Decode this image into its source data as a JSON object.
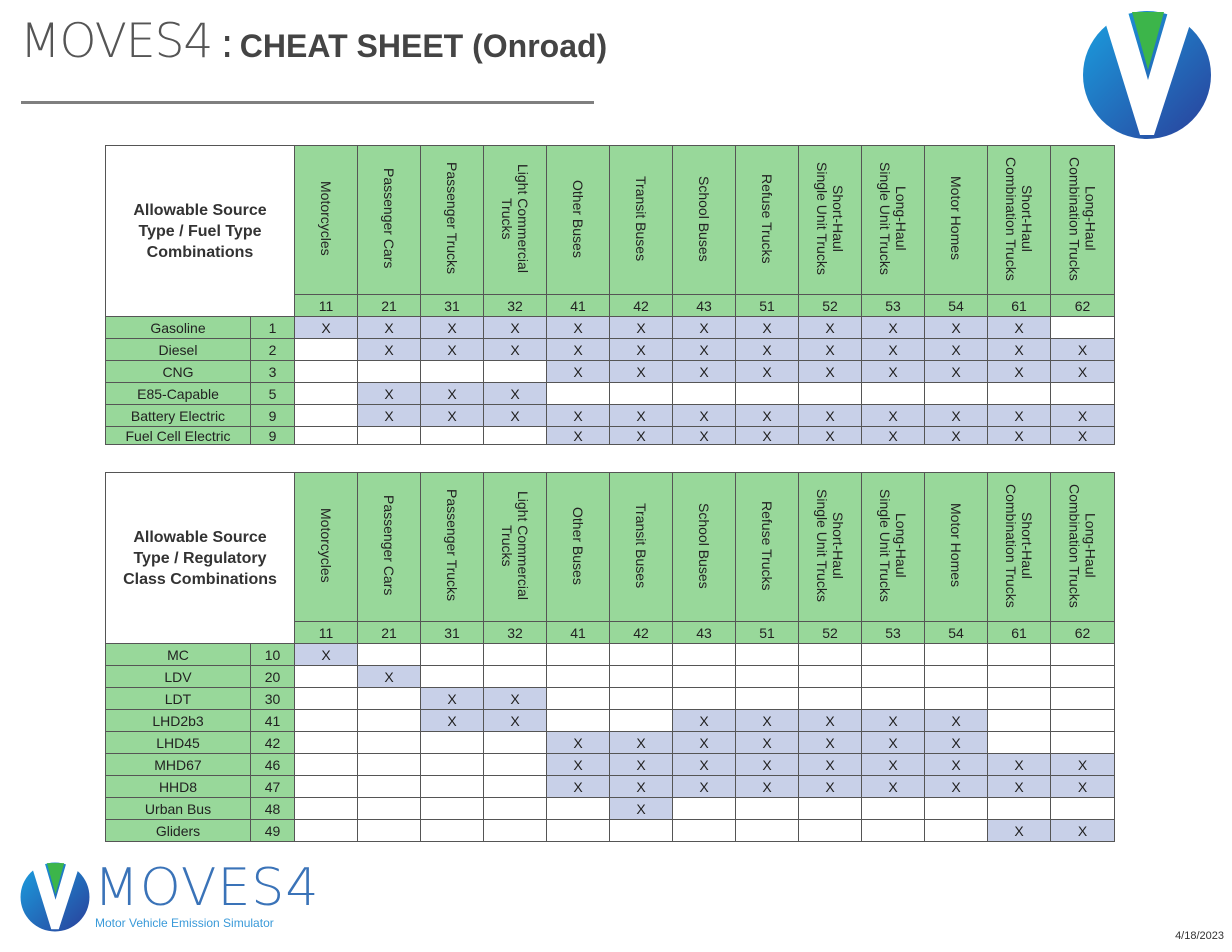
{
  "title": {
    "light": "MOVES4",
    "sep": ":",
    "bold": "CHEAT SHEET (Onroad)"
  },
  "date": "4/18/2023",
  "colors": {
    "header_green": "#98d89a",
    "cell_blue": "#c8d0e8",
    "logo_green": "#3cb54a",
    "logo_blue": "#1e88d0"
  },
  "source_types": [
    {
      "name": "Motorcycles",
      "id": "11"
    },
    {
      "name": "Passenger Cars",
      "id": "21"
    },
    {
      "name": "Passenger Trucks",
      "id": "31"
    },
    {
      "name": "Light Commercial\nTrucks",
      "id": "32"
    },
    {
      "name": "Other Buses",
      "id": "41"
    },
    {
      "name": "Transit Buses",
      "id": "42"
    },
    {
      "name": "School Buses",
      "id": "43"
    },
    {
      "name": "Refuse Trucks",
      "id": "51"
    },
    {
      "name": "Short-Haul\nSingle Unit Trucks",
      "id": "52"
    },
    {
      "name": "Long-Haul\nSingle Unit Trucks",
      "id": "53"
    },
    {
      "name": "Motor Homes",
      "id": "54"
    },
    {
      "name": "Short-Haul\nCombination Trucks",
      "id": "61"
    },
    {
      "name": "Long-Haul\nCombination Trucks",
      "id": "62"
    }
  ],
  "fuel_table": {
    "corner": "Allowable Source\nType / Fuel Type\nCombinations",
    "rows": [
      {
        "label": "Gasoline",
        "id": "1",
        "cells": [
          1,
          1,
          1,
          1,
          1,
          1,
          1,
          1,
          1,
          1,
          1,
          1,
          0
        ]
      },
      {
        "label": "Diesel",
        "id": "2",
        "cells": [
          0,
          1,
          1,
          1,
          1,
          1,
          1,
          1,
          1,
          1,
          1,
          1,
          1
        ]
      },
      {
        "label": "CNG",
        "id": "3",
        "cells": [
          0,
          0,
          0,
          0,
          1,
          1,
          1,
          1,
          1,
          1,
          1,
          1,
          1
        ]
      },
      {
        "label": "E85-Capable",
        "id": "5",
        "cells": [
          0,
          1,
          1,
          1,
          0,
          0,
          0,
          0,
          0,
          0,
          0,
          0,
          0
        ]
      },
      {
        "label": "Battery Electric",
        "id": "9",
        "cells": [
          0,
          1,
          1,
          1,
          1,
          1,
          1,
          1,
          1,
          1,
          1,
          1,
          1
        ]
      },
      {
        "label": "Fuel Cell Electric",
        "id": "9",
        "cells": [
          0,
          0,
          0,
          0,
          1,
          1,
          1,
          1,
          1,
          1,
          1,
          1,
          1
        ]
      }
    ]
  },
  "reg_table": {
    "corner": "Allowable Source\nType / Regulatory\nClass Combinations",
    "rows": [
      {
        "label": "MC",
        "id": "10",
        "cells": [
          1,
          0,
          0,
          0,
          0,
          0,
          0,
          0,
          0,
          0,
          0,
          0,
          0
        ]
      },
      {
        "label": "LDV",
        "id": "20",
        "cells": [
          0,
          1,
          0,
          0,
          0,
          0,
          0,
          0,
          0,
          0,
          0,
          0,
          0
        ]
      },
      {
        "label": "LDT",
        "id": "30",
        "cells": [
          0,
          0,
          1,
          1,
          0,
          0,
          0,
          0,
          0,
          0,
          0,
          0,
          0
        ]
      },
      {
        "label": "LHD2b3",
        "id": "41",
        "cells": [
          0,
          0,
          1,
          1,
          0,
          0,
          1,
          1,
          1,
          1,
          1,
          0,
          0
        ]
      },
      {
        "label": "LHD45",
        "id": "42",
        "cells": [
          0,
          0,
          0,
          0,
          1,
          1,
          1,
          1,
          1,
          1,
          1,
          0,
          0
        ]
      },
      {
        "label": "MHD67",
        "id": "46",
        "cells": [
          0,
          0,
          0,
          0,
          1,
          1,
          1,
          1,
          1,
          1,
          1,
          1,
          1
        ]
      },
      {
        "label": "HHD8",
        "id": "47",
        "cells": [
          0,
          0,
          0,
          0,
          1,
          1,
          1,
          1,
          1,
          1,
          1,
          1,
          1
        ]
      },
      {
        "label": "Urban Bus",
        "id": "48",
        "cells": [
          0,
          0,
          0,
          0,
          0,
          1,
          0,
          0,
          0,
          0,
          0,
          0,
          0
        ]
      },
      {
        "label": "Gliders",
        "id": "49",
        "cells": [
          0,
          0,
          0,
          0,
          0,
          0,
          0,
          0,
          0,
          0,
          0,
          1,
          1
        ]
      }
    ]
  },
  "mark": "X",
  "logo": {
    "word": "MOVES4",
    "tagline": "Motor Vehicle Emission Simulator"
  }
}
